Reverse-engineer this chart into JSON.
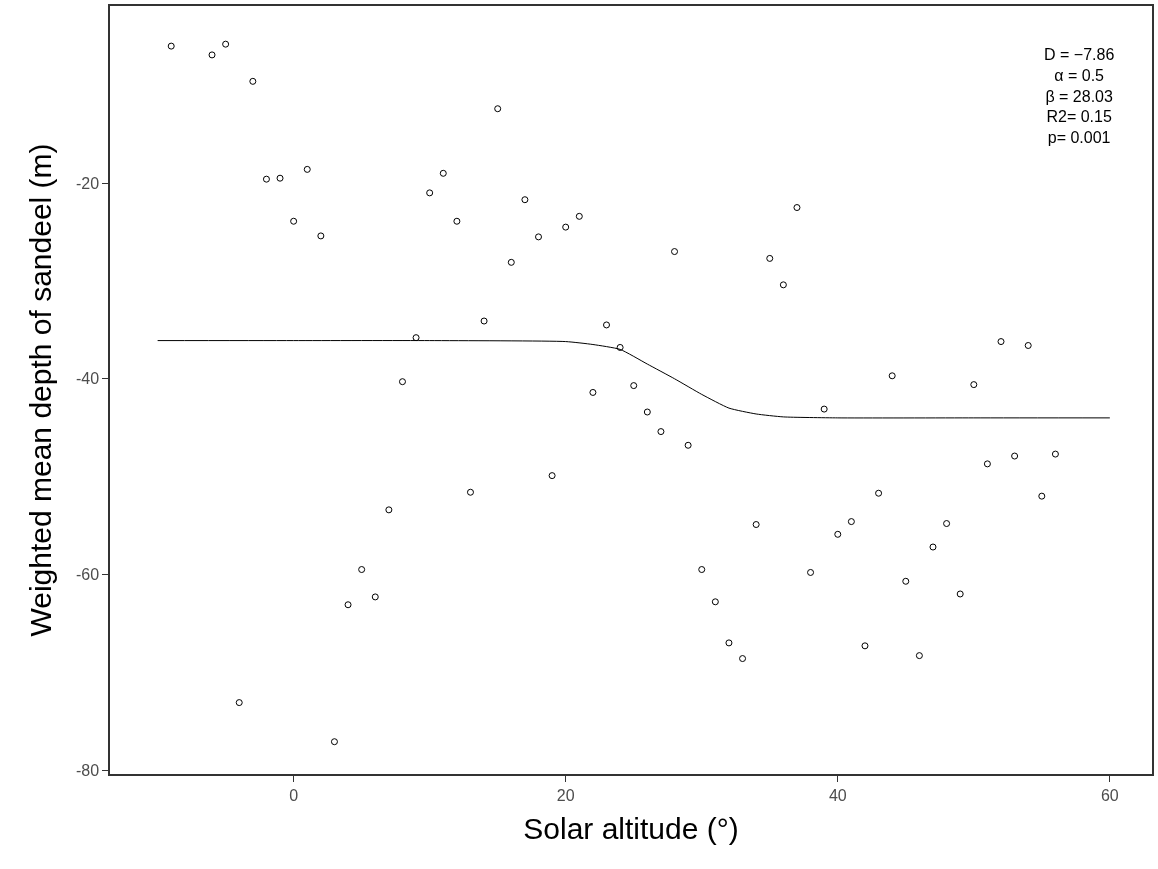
{
  "chart_data": {
    "type": "scatter",
    "xlabel": "Solar altitude (°)",
    "ylabel": "Weighted mean depth of sandeel (m)",
    "xlim": [
      -13.5,
      63.1
    ],
    "ylim": [
      -80.4,
      -1.9
    ],
    "xticks": [
      0,
      20,
      40,
      60
    ],
    "yticks": [
      -20,
      -40,
      -60,
      -80
    ],
    "grid": false,
    "series": [
      {
        "marker": "circle",
        "color": "#000000",
        "x": [
          -9,
          -6,
          -5,
          -3,
          -2,
          -1,
          0,
          1,
          2,
          -4,
          3,
          4,
          5,
          6,
          7,
          8,
          9,
          10,
          11,
          12,
          13,
          14,
          15,
          16,
          17,
          18,
          19,
          20,
          21,
          22,
          23,
          24,
          25,
          26,
          27,
          28,
          29,
          30,
          31,
          32,
          33,
          34,
          35,
          36,
          37,
          38,
          39,
          40,
          41,
          42,
          43,
          44,
          45,
          46,
          47,
          48,
          49,
          50,
          51,
          52,
          53,
          54,
          55,
          56
        ],
        "values": [
          -6.0,
          -6.9,
          -5.8,
          -9.6,
          -19.6,
          -19.5,
          -23.9,
          -18.6,
          -25.4,
          -73.1,
          -77.1,
          -63.1,
          -59.5,
          -62.3,
          -53.4,
          -40.3,
          -35.8,
          -21.0,
          -19.0,
          -23.9,
          -51.6,
          -34.1,
          -12.4,
          -28.1,
          -21.7,
          -25.5,
          -49.9,
          -24.5,
          -23.4,
          -41.4,
          -34.5,
          -36.8,
          -40.7,
          -43.4,
          -45.4,
          -27.0,
          -46.8,
          -59.5,
          -62.8,
          -67.0,
          -68.6,
          -54.9,
          -27.7,
          -30.4,
          -22.5,
          -59.8,
          -43.1,
          -55.9,
          -54.6,
          -67.3,
          -51.7,
          -39.7,
          -60.7,
          -68.3,
          -57.2,
          -54.8,
          -62.0,
          -40.6,
          -48.7,
          -36.2,
          -47.9,
          -36.6,
          -52.0,
          -47.7
        ]
      },
      {
        "type": "line",
        "marker": "none",
        "color": "#000000",
        "line_style": "solid",
        "x": [
          -10,
          0,
          10,
          20,
          22,
          24,
          26,
          28,
          30,
          32,
          34,
          36,
          40,
          50,
          60
        ],
        "values": [
          -36.1,
          -36.1,
          -36.1,
          -36.2,
          -36.5,
          -37.0,
          -38.5,
          -40.0,
          -41.6,
          -43.0,
          -43.6,
          -43.9,
          -44.0,
          -44.0,
          -44.0
        ]
      }
    ],
    "annotations": [
      "D = −7.86",
      "α = 0.5",
      "β = 28.03",
      "R2= 0.15",
      "p= 0.001"
    ]
  }
}
